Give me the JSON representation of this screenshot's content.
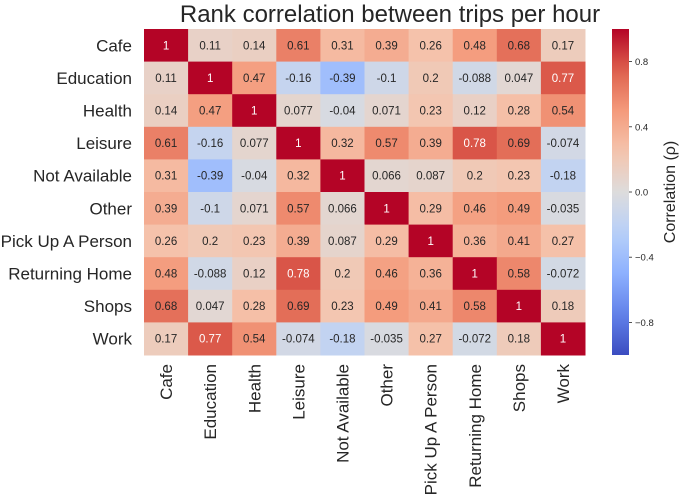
{
  "chart_data": {
    "type": "heatmap",
    "title": "Rank correlation between trips per hour",
    "rows": [
      "Cafe",
      "Education",
      "Health",
      "Leisure",
      "Not Available",
      "Other",
      "Pick Up A Person",
      "Returning Home",
      "Shops",
      "Work"
    ],
    "columns": [
      "Cafe",
      "Education",
      "Health",
      "Leisure",
      "Not Available",
      "Other",
      "Pick Up A Person",
      "Returning Home",
      "Shops",
      "Work"
    ],
    "values": [
      [
        1,
        0.11,
        0.14,
        0.61,
        0.31,
        0.39,
        0.26,
        0.48,
        0.68,
        0.17
      ],
      [
        0.11,
        1,
        0.47,
        -0.16,
        -0.39,
        -0.1,
        0.2,
        -0.088,
        0.047,
        0.77
      ],
      [
        0.14,
        0.47,
        1,
        0.077,
        -0.04,
        0.071,
        0.23,
        0.12,
        0.28,
        0.54
      ],
      [
        0.61,
        -0.16,
        0.077,
        1,
        0.32,
        0.57,
        0.39,
        0.78,
        0.69,
        -0.074
      ],
      [
        0.31,
        -0.39,
        -0.04,
        0.32,
        1,
        0.066,
        0.087,
        0.2,
        0.23,
        -0.18
      ],
      [
        0.39,
        -0.1,
        0.071,
        0.57,
        0.066,
        1,
        0.29,
        0.46,
        0.49,
        -0.035
      ],
      [
        0.26,
        0.2,
        0.23,
        0.39,
        0.087,
        0.29,
        1,
        0.36,
        0.41,
        0.27
      ],
      [
        0.48,
        -0.088,
        0.12,
        0.78,
        0.2,
        0.46,
        0.36,
        1,
        0.58,
        -0.072
      ],
      [
        0.68,
        0.047,
        0.28,
        0.69,
        0.23,
        0.49,
        0.41,
        0.58,
        1,
        0.18
      ],
      [
        0.17,
        0.77,
        0.54,
        -0.074,
        -0.18,
        -0.035,
        0.27,
        -0.072,
        0.18,
        1
      ]
    ],
    "colorbar": {
      "label": "Correlation (ρ)",
      "range": [
        -1,
        1
      ],
      "ticks": [
        -0.8,
        -0.4,
        0.0,
        0.4,
        0.8
      ],
      "tick_labels": [
        "−0.8",
        "−0.4",
        "0.0",
        "0.4",
        "0.8"
      ],
      "colormap": "coolwarm"
    },
    "colors": {
      "low": "#3b4cc0",
      "mid": "#dddddd",
      "high": "#b40426"
    }
  }
}
